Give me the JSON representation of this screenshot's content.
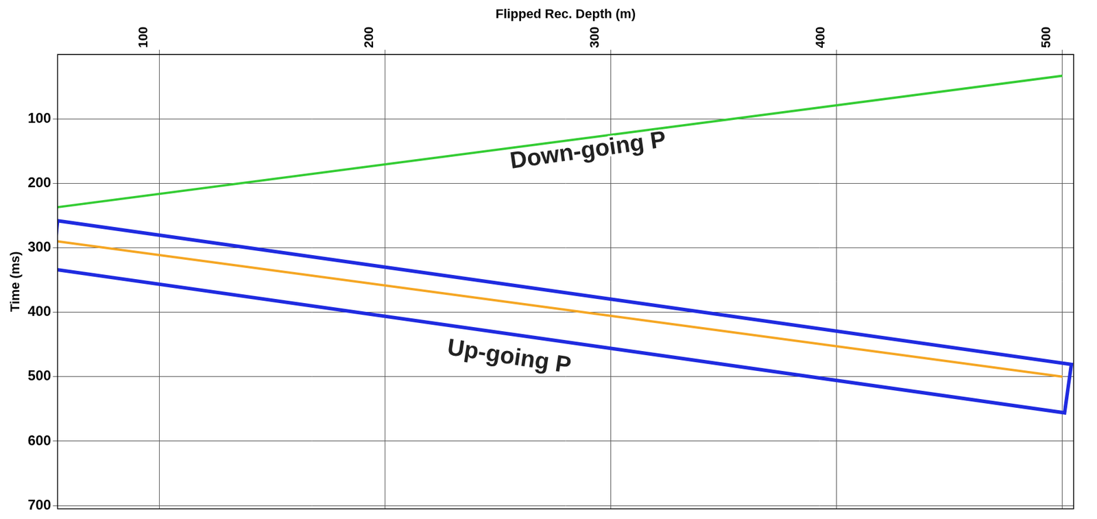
{
  "chart_data": {
    "type": "line",
    "x_label": "Flipped Rec. Depth (m)",
    "y_label": "Time (ms)",
    "xlim": [
      55,
      505
    ],
    "xticks": [
      100,
      200,
      300,
      400,
      500
    ],
    "ylim": [
      0,
      705
    ],
    "yticks": [
      100,
      200,
      300,
      400,
      500,
      600,
      700
    ],
    "grid": true,
    "series": [
      {
        "color": "#33cc33",
        "x": [
          55,
          500
        ],
        "values": [
          237,
          33
        ]
      },
      {
        "color": "#f5a623",
        "x": [
          55,
          500
        ],
        "values": [
          290,
          500
        ]
      },
      {
        "color": "#1f2be0",
        "x": [
          55,
          504,
          501,
          53,
          55
        ],
        "values": [
          258,
          481,
          556,
          333,
          258
        ]
      }
    ],
    "annotations": [
      {
        "text": "Down-going P",
        "x": 290,
        "y": 150
      },
      {
        "text": "Up-going P",
        "x": 255,
        "y": 470
      }
    ]
  }
}
